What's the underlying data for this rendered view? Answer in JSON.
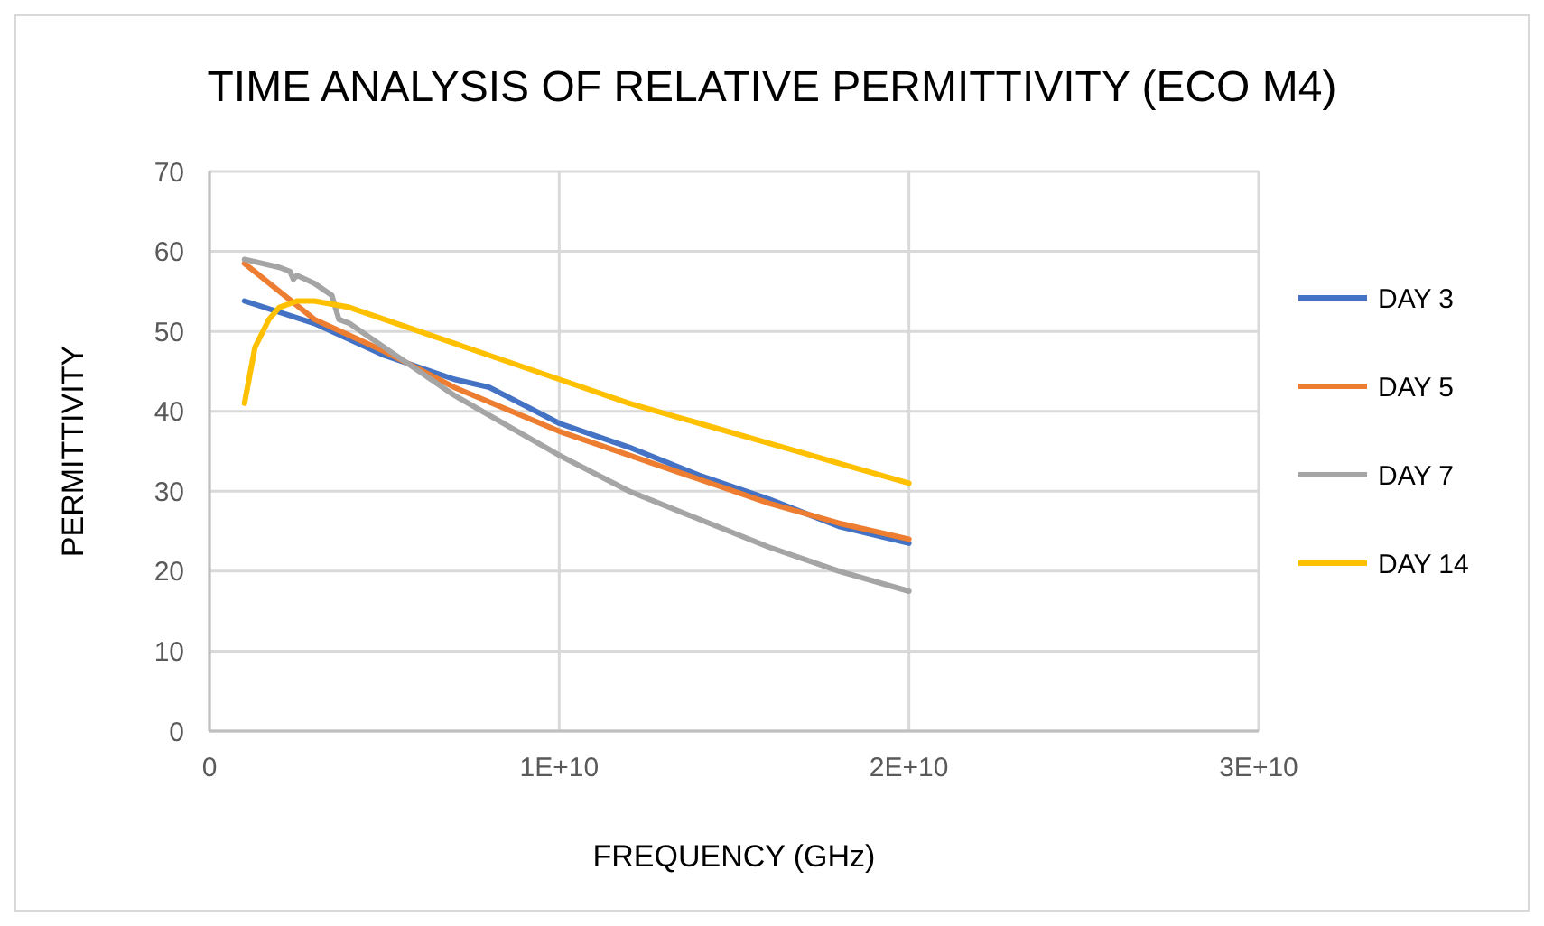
{
  "chart_data": {
    "type": "line",
    "title": "TIME ANALYSIS OF RELATIVE PERMITTIVITY (ECO M4)",
    "xlabel": "FREQUENCY (GHz)",
    "ylabel": "PERMITTIVITY",
    "xlim": [
      0,
      30000000000
    ],
    "xticks": [
      0,
      {
        "value": 10000000000,
        "label": "1E+10"
      },
      {
        "value": 20000000000,
        "label": "2E+10"
      },
      {
        "value": 30000000000,
        "label": "3E+10"
      }
    ],
    "ylim": [
      0,
      70
    ],
    "yticks": [
      0,
      10,
      20,
      30,
      40,
      50,
      60,
      70
    ],
    "grid": true,
    "legend": "right",
    "marker": "none",
    "line_style": "solid",
    "series": [
      {
        "name": "DAY 3",
        "color": "#4472c4",
        "x": [
          1000000000,
          3000000000,
          5000000000,
          7000000000,
          8000000000,
          10000000000,
          12000000000,
          14000000000,
          16000000000,
          18000000000,
          20000000000
        ],
        "values": [
          53.8,
          51,
          47,
          44,
          43,
          38.5,
          35.5,
          32,
          29,
          25.6,
          23.5
        ]
      },
      {
        "name": "DAY 5",
        "color": "#ed7d31",
        "x": [
          1000000000,
          2000000000,
          3000000000,
          4000000000,
          5000000000,
          7000000000,
          10000000000,
          12000000000,
          14000000000,
          16000000000,
          18000000000,
          20000000000
        ],
        "values": [
          58.5,
          55,
          51.5,
          49.5,
          47.5,
          43,
          37.5,
          34.5,
          31.5,
          28.5,
          26,
          24
        ]
      },
      {
        "name": "DAY 7",
        "color": "#a5a5a5",
        "x": [
          1000000000,
          2000000000,
          2300000000,
          2400000000,
          2500000000,
          3000000000,
          3500000000,
          3700000000,
          4000000000,
          5000000000,
          6000000000,
          7000000000,
          8000000000,
          10000000000,
          12000000000,
          14000000000,
          16000000000,
          18000000000,
          20000000000
        ],
        "values": [
          59,
          58,
          57.5,
          56.5,
          57,
          56,
          54.5,
          51.5,
          51,
          48,
          45,
          42,
          39.5,
          34.5,
          30,
          26.5,
          23,
          20,
          17.5
        ]
      },
      {
        "name": "DAY 14",
        "color": "#ffc000",
        "x": [
          1000000000,
          1300000000,
          1700000000,
          2000000000,
          2500000000,
          3000000000,
          4000000000,
          5000000000,
          7000000000,
          10000000000,
          12000000000,
          14000000000,
          16000000000,
          18000000000,
          20000000000
        ],
        "values": [
          41,
          48,
          51.5,
          53,
          53.8,
          53.8,
          53,
          51.5,
          48.5,
          44,
          41,
          38.5,
          36,
          33.5,
          31
        ]
      }
    ]
  }
}
